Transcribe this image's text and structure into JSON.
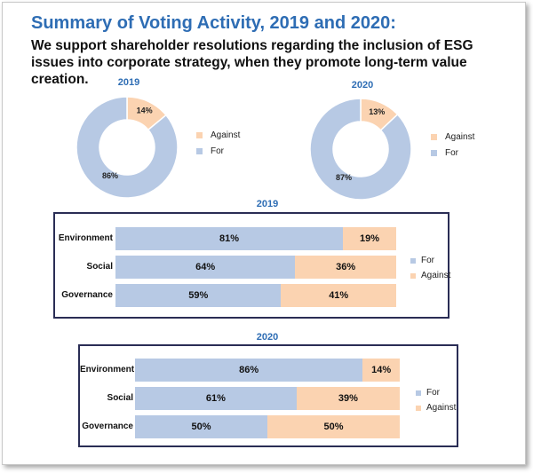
{
  "header": {
    "title": "Summary of Voting Activity, 2019 and 2020:",
    "subtitle": "We support shareholder resolutions regarding the inclusion of ESG issues into corporate strategy, when they promote long-term value creation."
  },
  "colors": {
    "for": "#b7c9e4",
    "against": "#fbd3b1"
  },
  "chart_data": [
    {
      "type": "pie",
      "title": "2019",
      "slices": [
        {
          "name": "Against",
          "value": 14,
          "label": "14%"
        },
        {
          "name": "For",
          "value": 86,
          "label": "86%"
        }
      ],
      "legend": [
        "Against",
        "For"
      ],
      "legend_position": "right"
    },
    {
      "type": "pie",
      "title": "2020",
      "slices": [
        {
          "name": "Against",
          "value": 13,
          "label": "13%"
        },
        {
          "name": "For",
          "value": 87,
          "label": "87%"
        }
      ],
      "legend": [
        "Against",
        "For"
      ],
      "legend_position": "right"
    },
    {
      "type": "bar",
      "orientation": "horizontal",
      "stacked": true,
      "title": "2019",
      "categories": [
        "Environment",
        "Social",
        "Governance"
      ],
      "series": [
        {
          "name": "For",
          "values": [
            81,
            64,
            59
          ],
          "labels": [
            "81%",
            "64%",
            "59%"
          ]
        },
        {
          "name": "Against",
          "values": [
            19,
            36,
            41
          ],
          "labels": [
            "19%",
            "36%",
            "41%"
          ]
        }
      ],
      "xlim": [
        0,
        100
      ],
      "legend": [
        "For",
        "Against"
      ],
      "legend_position": "right"
    },
    {
      "type": "bar",
      "orientation": "horizontal",
      "stacked": true,
      "title": "2020",
      "categories": [
        "Environment",
        "Social",
        "Governance"
      ],
      "series": [
        {
          "name": "For",
          "values": [
            86,
            61,
            50
          ],
          "labels": [
            "86%",
            "61%",
            "50%"
          ]
        },
        {
          "name": "Against",
          "values": [
            14,
            39,
            50
          ],
          "labels": [
            "14%",
            "39%",
            "50%"
          ]
        }
      ],
      "xlim": [
        0,
        100
      ],
      "legend": [
        "For",
        "Against"
      ],
      "legend_position": "right"
    }
  ]
}
